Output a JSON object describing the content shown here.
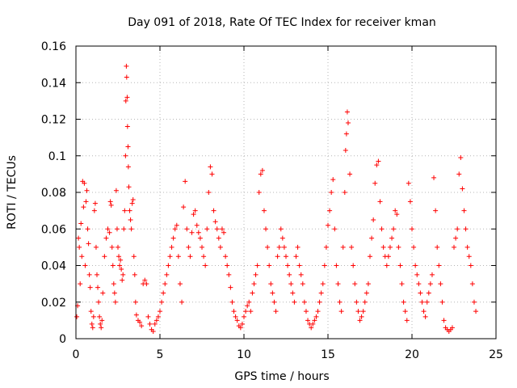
{
  "chart_data": {
    "type": "scatter",
    "title": "Day 091 of 2018, Rate Of TEC Index for receiver kman",
    "xlabel": "GPS time / hours",
    "ylabel": "ROTI / TECUs",
    "xlim": [
      0,
      25
    ],
    "ylim": [
      0,
      0.16
    ],
    "xticks": [
      0,
      5,
      10,
      15,
      20,
      25
    ],
    "yticks": [
      0,
      0.02,
      0.04,
      0.06,
      0.08,
      0.1,
      0.12,
      0.14,
      0.16
    ],
    "xtick_labels": [
      "0",
      "5",
      "10",
      "15",
      "20",
      "25"
    ],
    "ytick_labels": [
      "0",
      "0.02",
      "0.04",
      "0.06",
      "0.08",
      "0.1",
      "0.12",
      "0.14",
      "0.16"
    ],
    "grid": true,
    "marker": "+",
    "color": "#ff0000",
    "series": [
      {
        "name": "ROTI",
        "points": [
          [
            0.05,
            0.012
          ],
          [
            0.1,
            0.018
          ],
          [
            0.15,
            0.055
          ],
          [
            0.2,
            0.05
          ],
          [
            0.25,
            0.03
          ],
          [
            0.3,
            0.063
          ],
          [
            0.35,
            0.045
          ],
          [
            0.4,
            0.086
          ],
          [
            0.45,
            0.072
          ],
          [
            0.5,
            0.085
          ],
          [
            0.55,
            0.04
          ],
          [
            0.6,
            0.075
          ],
          [
            0.65,
            0.081
          ],
          [
            0.7,
            0.06
          ],
          [
            0.75,
            0.052
          ],
          [
            0.8,
            0.035
          ],
          [
            0.85,
            0.028
          ],
          [
            0.9,
            0.015
          ],
          [
            0.95,
            0.008
          ],
          [
            1.0,
            0.006
          ],
          [
            1.05,
            0.012
          ],
          [
            1.1,
            0.07
          ],
          [
            1.15,
            0.074
          ],
          [
            1.2,
            0.05
          ],
          [
            1.25,
            0.035
          ],
          [
            1.3,
            0.028
          ],
          [
            1.35,
            0.02
          ],
          [
            1.4,
            0.012
          ],
          [
            1.45,
            0.008
          ],
          [
            1.5,
            0.006
          ],
          [
            1.55,
            0.01
          ],
          [
            1.6,
            0.025
          ],
          [
            1.7,
            0.045
          ],
          [
            1.8,
            0.055
          ],
          [
            1.9,
            0.06
          ],
          [
            2.0,
            0.058
          ],
          [
            2.05,
            0.075
          ],
          [
            2.1,
            0.073
          ],
          [
            2.15,
            0.05
          ],
          [
            2.2,
            0.04
          ],
          [
            2.25,
            0.03
          ],
          [
            2.3,
            0.025
          ],
          [
            2.35,
            0.02
          ],
          [
            2.4,
            0.081
          ],
          [
            2.45,
            0.06
          ],
          [
            2.5,
            0.05
          ],
          [
            2.55,
            0.045
          ],
          [
            2.6,
            0.04
          ],
          [
            2.65,
            0.043
          ],
          [
            2.7,
            0.038
          ],
          [
            2.75,
            0.032
          ],
          [
            2.8,
            0.035
          ],
          [
            2.85,
            0.06
          ],
          [
            2.9,
            0.07
          ],
          [
            2.95,
            0.1
          ],
          [
            2.97,
            0.13
          ],
          [
            3.0,
            0.149
          ],
          [
            3.02,
            0.143
          ],
          [
            3.05,
            0.132
          ],
          [
            3.07,
            0.116
          ],
          [
            3.1,
            0.105
          ],
          [
            3.12,
            0.094
          ],
          [
            3.15,
            0.083
          ],
          [
            3.2,
            0.07
          ],
          [
            3.25,
            0.065
          ],
          [
            3.3,
            0.06
          ],
          [
            3.35,
            0.074
          ],
          [
            3.4,
            0.076
          ],
          [
            3.45,
            0.045
          ],
          [
            3.5,
            0.035
          ],
          [
            3.55,
            0.02
          ],
          [
            3.6,
            0.013
          ],
          [
            3.7,
            0.01
          ],
          [
            3.8,
            0.009
          ],
          [
            3.9,
            0.007
          ],
          [
            4.0,
            0.03
          ],
          [
            4.1,
            0.032
          ],
          [
            4.2,
            0.03
          ],
          [
            4.3,
            0.012
          ],
          [
            4.4,
            0.008
          ],
          [
            4.5,
            0.005
          ],
          [
            4.6,
            0.004
          ],
          [
            4.7,
            0.008
          ],
          [
            4.8,
            0.01
          ],
          [
            4.9,
            0.012
          ],
          [
            5.0,
            0.015
          ],
          [
            5.1,
            0.02
          ],
          [
            5.2,
            0.025
          ],
          [
            5.3,
            0.03
          ],
          [
            5.4,
            0.035
          ],
          [
            5.5,
            0.04
          ],
          [
            5.6,
            0.045
          ],
          [
            5.7,
            0.05
          ],
          [
            5.8,
            0.055
          ],
          [
            5.9,
            0.06
          ],
          [
            6.0,
            0.062
          ],
          [
            6.1,
            0.045
          ],
          [
            6.2,
            0.03
          ],
          [
            6.3,
            0.02
          ],
          [
            6.4,
            0.072
          ],
          [
            6.5,
            0.086
          ],
          [
            6.6,
            0.06
          ],
          [
            6.7,
            0.05
          ],
          [
            6.8,
            0.045
          ],
          [
            6.9,
            0.058
          ],
          [
            7.0,
            0.068
          ],
          [
            7.1,
            0.07
          ],
          [
            7.2,
            0.062
          ],
          [
            7.3,
            0.058
          ],
          [
            7.4,
            0.055
          ],
          [
            7.5,
            0.05
          ],
          [
            7.6,
            0.045
          ],
          [
            7.7,
            0.04
          ],
          [
            7.8,
            0.06
          ],
          [
            7.9,
            0.08
          ],
          [
            8.0,
            0.094
          ],
          [
            8.1,
            0.09
          ],
          [
            8.2,
            0.07
          ],
          [
            8.3,
            0.064
          ],
          [
            8.4,
            0.06
          ],
          [
            8.5,
            0.055
          ],
          [
            8.6,
            0.05
          ],
          [
            8.7,
            0.06
          ],
          [
            8.8,
            0.058
          ],
          [
            8.9,
            0.045
          ],
          [
            9.0,
            0.04
          ],
          [
            9.1,
            0.035
          ],
          [
            9.2,
            0.028
          ],
          [
            9.3,
            0.02
          ],
          [
            9.4,
            0.015
          ],
          [
            9.5,
            0.012
          ],
          [
            9.6,
            0.01
          ],
          [
            9.7,
            0.007
          ],
          [
            9.8,
            0.006
          ],
          [
            9.9,
            0.008
          ],
          [
            10.0,
            0.012
          ],
          [
            10.1,
            0.015
          ],
          [
            10.2,
            0.018
          ],
          [
            10.3,
            0.02
          ],
          [
            10.4,
            0.015
          ],
          [
            10.5,
            0.025
          ],
          [
            10.6,
            0.03
          ],
          [
            10.7,
            0.035
          ],
          [
            10.8,
            0.04
          ],
          [
            10.9,
            0.08
          ],
          [
            11.0,
            0.09
          ],
          [
            11.1,
            0.092
          ],
          [
            11.2,
            0.07
          ],
          [
            11.3,
            0.06
          ],
          [
            11.4,
            0.05
          ],
          [
            11.5,
            0.04
          ],
          [
            11.6,
            0.03
          ],
          [
            11.7,
            0.025
          ],
          [
            11.8,
            0.02
          ],
          [
            11.9,
            0.015
          ],
          [
            12.0,
            0.045
          ],
          [
            12.1,
            0.05
          ],
          [
            12.2,
            0.06
          ],
          [
            12.3,
            0.055
          ],
          [
            12.4,
            0.05
          ],
          [
            12.5,
            0.045
          ],
          [
            12.6,
            0.04
          ],
          [
            12.7,
            0.035
          ],
          [
            12.8,
            0.03
          ],
          [
            12.9,
            0.025
          ],
          [
            13.0,
            0.02
          ],
          [
            13.1,
            0.045
          ],
          [
            13.2,
            0.05
          ],
          [
            13.3,
            0.04
          ],
          [
            13.4,
            0.035
          ],
          [
            13.5,
            0.03
          ],
          [
            13.6,
            0.02
          ],
          [
            13.7,
            0.015
          ],
          [
            13.8,
            0.01
          ],
          [
            13.9,
            0.008
          ],
          [
            14.0,
            0.006
          ],
          [
            14.1,
            0.008
          ],
          [
            14.2,
            0.01
          ],
          [
            14.3,
            0.012
          ],
          [
            14.4,
            0.015
          ],
          [
            14.5,
            0.02
          ],
          [
            14.6,
            0.025
          ],
          [
            14.7,
            0.03
          ],
          [
            14.8,
            0.04
          ],
          [
            14.9,
            0.05
          ],
          [
            15.0,
            0.062
          ],
          [
            15.1,
            0.07
          ],
          [
            15.2,
            0.08
          ],
          [
            15.3,
            0.087
          ],
          [
            15.4,
            0.06
          ],
          [
            15.5,
            0.04
          ],
          [
            15.6,
            0.03
          ],
          [
            15.7,
            0.02
          ],
          [
            15.8,
            0.015
          ],
          [
            15.9,
            0.05
          ],
          [
            16.0,
            0.08
          ],
          [
            16.05,
            0.103
          ],
          [
            16.1,
            0.112
          ],
          [
            16.15,
            0.124
          ],
          [
            16.2,
            0.118
          ],
          [
            16.3,
            0.09
          ],
          [
            16.4,
            0.05
          ],
          [
            16.5,
            0.04
          ],
          [
            16.6,
            0.03
          ],
          [
            16.7,
            0.02
          ],
          [
            16.8,
            0.015
          ],
          [
            16.9,
            0.01
          ],
          [
            17.0,
            0.012
          ],
          [
            17.1,
            0.015
          ],
          [
            17.2,
            0.02
          ],
          [
            17.3,
            0.025
          ],
          [
            17.4,
            0.03
          ],
          [
            17.5,
            0.045
          ],
          [
            17.6,
            0.055
          ],
          [
            17.7,
            0.065
          ],
          [
            17.8,
            0.085
          ],
          [
            17.9,
            0.095
          ],
          [
            18.0,
            0.097
          ],
          [
            18.1,
            0.075
          ],
          [
            18.2,
            0.06
          ],
          [
            18.3,
            0.05
          ],
          [
            18.4,
            0.045
          ],
          [
            18.5,
            0.04
          ],
          [
            18.6,
            0.045
          ],
          [
            18.7,
            0.05
          ],
          [
            18.8,
            0.055
          ],
          [
            18.9,
            0.06
          ],
          [
            19.0,
            0.07
          ],
          [
            19.1,
            0.068
          ],
          [
            19.2,
            0.05
          ],
          [
            19.3,
            0.04
          ],
          [
            19.4,
            0.03
          ],
          [
            19.5,
            0.02
          ],
          [
            19.6,
            0.015
          ],
          [
            19.7,
            0.01
          ],
          [
            19.8,
            0.085
          ],
          [
            19.9,
            0.075
          ],
          [
            20.0,
            0.06
          ],
          [
            20.1,
            0.05
          ],
          [
            20.2,
            0.04
          ],
          [
            20.3,
            0.035
          ],
          [
            20.4,
            0.03
          ],
          [
            20.5,
            0.025
          ],
          [
            20.6,
            0.02
          ],
          [
            20.7,
            0.015
          ],
          [
            20.8,
            0.012
          ],
          [
            20.9,
            0.02
          ],
          [
            21.0,
            0.025
          ],
          [
            21.1,
            0.03
          ],
          [
            21.2,
            0.035
          ],
          [
            21.3,
            0.088
          ],
          [
            21.4,
            0.07
          ],
          [
            21.5,
            0.05
          ],
          [
            21.6,
            0.04
          ],
          [
            21.7,
            0.03
          ],
          [
            21.8,
            0.02
          ],
          [
            21.9,
            0.01
          ],
          [
            22.0,
            0.006
          ],
          [
            22.1,
            0.005
          ],
          [
            22.2,
            0.004
          ],
          [
            22.3,
            0.005
          ],
          [
            22.4,
            0.006
          ],
          [
            22.5,
            0.05
          ],
          [
            22.6,
            0.055
          ],
          [
            22.7,
            0.06
          ],
          [
            22.8,
            0.09
          ],
          [
            22.9,
            0.099
          ],
          [
            23.0,
            0.082
          ],
          [
            23.1,
            0.07
          ],
          [
            23.2,
            0.06
          ],
          [
            23.3,
            0.05
          ],
          [
            23.4,
            0.045
          ],
          [
            23.5,
            0.04
          ],
          [
            23.6,
            0.03
          ],
          [
            23.7,
            0.02
          ],
          [
            23.8,
            0.015
          ]
        ]
      }
    ]
  }
}
